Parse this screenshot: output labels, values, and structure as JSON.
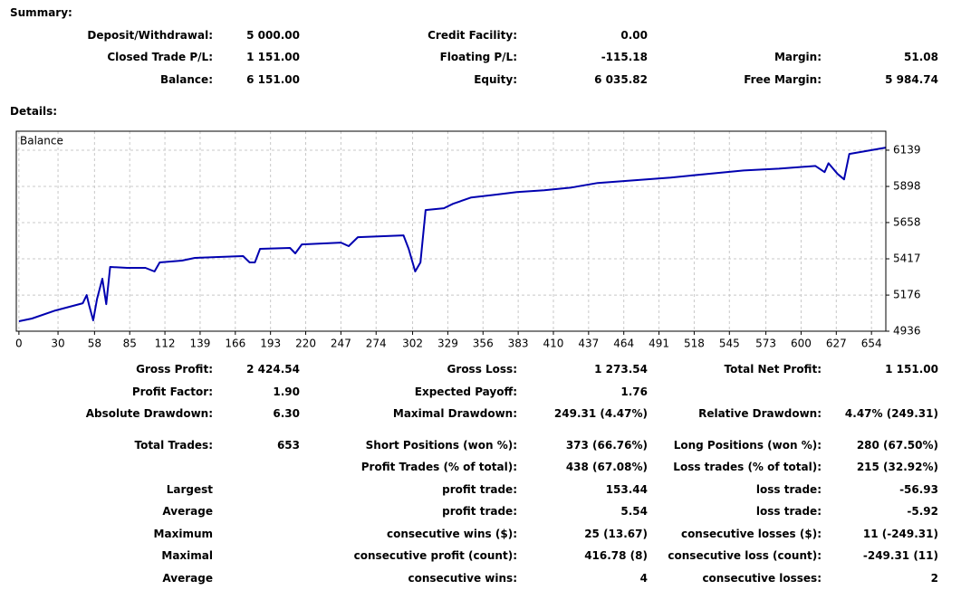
{
  "summary": {
    "heading": "Summary:",
    "rows": [
      [
        "Deposit/Withdrawal:",
        "5 000.00",
        "Credit Facility:",
        "0.00",
        null,
        null
      ],
      [
        "Closed Trade P/L:",
        "1 151.00",
        "Floating P/L:",
        "-115.18",
        "Margin:",
        "51.08"
      ],
      [
        "Balance:",
        "6 151.00",
        "Equity:",
        "6 035.82",
        "Free Margin:",
        "5 984.74"
      ]
    ]
  },
  "details": {
    "heading": "Details:",
    "rows": [
      [
        "Gross Profit:",
        "2 424.54",
        "Gross Loss:",
        "1 273.54",
        "Total Net Profit:",
        "1 151.00"
      ],
      [
        "Profit Factor:",
        "1.90",
        "Expected Payoff:",
        "1.76",
        null,
        null
      ],
      [
        "Absolute Drawdown:",
        "6.30",
        "Maximal Drawdown:",
        "249.31 (4.47%)",
        "Relative Drawdown:",
        "4.47% (249.31)"
      ],
      [
        "Total Trades:",
        "653",
        "Short Positions (won %):",
        "373 (66.76%)",
        "Long Positions (won %):",
        "280 (67.50%)"
      ],
      [
        null,
        null,
        "Profit Trades (% of total):",
        "438 (67.08%)",
        "Loss trades (% of total):",
        "215 (32.92%)"
      ],
      [
        "Largest",
        null,
        "profit trade:",
        "153.44",
        "loss trade:",
        "-56.93"
      ],
      [
        "Average",
        null,
        "profit trade:",
        "5.54",
        "loss trade:",
        "-5.92"
      ],
      [
        "Maximum",
        null,
        "consecutive wins ($):",
        "25 (13.67)",
        "consecutive losses ($):",
        "11 (-249.31)"
      ],
      [
        "Maximal",
        null,
        "consecutive profit (count):",
        "416.78 (8)",
        "consecutive loss (count):",
        "-249.31 (11)"
      ],
      [
        "Average",
        null,
        "consecutive wins:",
        "4",
        "consecutive losses:",
        "2"
      ]
    ]
  },
  "chart_data": {
    "type": "line",
    "x": [
      0,
      10,
      28,
      49,
      52,
      54,
      57,
      60,
      64,
      67,
      70,
      83,
      97,
      104,
      108,
      125,
      135,
      153,
      172,
      177,
      181,
      185,
      208,
      212,
      217,
      247,
      253,
      260,
      295,
      299,
      304,
      308,
      312,
      326,
      333,
      347,
      365,
      382,
      403,
      424,
      444,
      472,
      500,
      528,
      556,
      583,
      611,
      618,
      621,
      628,
      633,
      637,
      649,
      665
    ],
    "series": [
      {
        "name": "Balance",
        "color": "#0000b0",
        "values": [
          5002,
          5020,
          5074,
          5122,
          5176,
          5104,
          5008,
          5152,
          5285,
          5116,
          5363,
          5357,
          5357,
          5333,
          5393,
          5405,
          5423,
          5429,
          5435,
          5393,
          5393,
          5483,
          5489,
          5453,
          5513,
          5525,
          5501,
          5561,
          5573,
          5483,
          5333,
          5393,
          5741,
          5753,
          5783,
          5825,
          5843,
          5861,
          5873,
          5891,
          5921,
          5939,
          5957,
          5981,
          6004,
          6016,
          6034,
          5993,
          6052,
          5981,
          5945,
          6114,
          6132,
          6156
        ]
      }
    ],
    "xlim": [
      -2,
      665
    ],
    "xticks": [
      0,
      30,
      58,
      85,
      112,
      139,
      166,
      193,
      220,
      247,
      274,
      302,
      329,
      356,
      383,
      410,
      437,
      464,
      491,
      518,
      545,
      573,
      600,
      627,
      654
    ],
    "ylim": [
      4936,
      6265
    ],
    "yticks": [
      4936,
      5176,
      5417,
      5658,
      5898,
      6139
    ],
    "grid": true
  }
}
